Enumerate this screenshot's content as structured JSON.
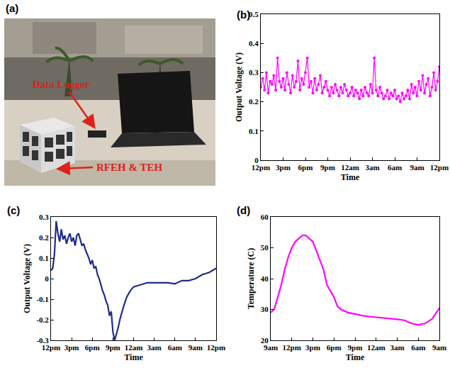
{
  "chart_data": [
    {
      "type": "line",
      "title": "(b)",
      "xlabel": "Time",
      "ylabel": "Output Voltage (V)",
      "color": "#ff00ff",
      "marker": "circle",
      "grid": false,
      "x": [
        0,
        0.25,
        0.5,
        0.75,
        1,
        1.25,
        1.5,
        1.75,
        2,
        2.25,
        2.5,
        2.75,
        3,
        3.25,
        3.5,
        3.75,
        4,
        4.25,
        4.5,
        4.75,
        5,
        5.25,
        5.5,
        5.75,
        6,
        6.25,
        6.5,
        6.75,
        7,
        7.25,
        7.5,
        7.75,
        8,
        8.25,
        8.5,
        8.75,
        9,
        9.25,
        9.5,
        9.75,
        10,
        10.25,
        10.5,
        10.75,
        11,
        11.25,
        11.5,
        11.75,
        12,
        12.25,
        12.5,
        12.75,
        13,
        13.25,
        13.5,
        13.75,
        14,
        14.25,
        14.5,
        14.75,
        15,
        15.25,
        15.5,
        15.75,
        16,
        16.25,
        16.5,
        16.75,
        17,
        17.25,
        17.5,
        17.75,
        18,
        18.25,
        18.5,
        18.75,
        19,
        19.25,
        19.5,
        19.75,
        20,
        20.25,
        20.5,
        20.75,
        21,
        21.25,
        21.5,
        21.75,
        22,
        22.25,
        22.5,
        22.75,
        23,
        23.25,
        23.5,
        23.75,
        24
      ],
      "values": [
        0.25,
        0.28,
        0.24,
        0.3,
        0.23,
        0.27,
        0.26,
        0.29,
        0.24,
        0.35,
        0.27,
        0.25,
        0.28,
        0.24,
        0.3,
        0.26,
        0.23,
        0.29,
        0.25,
        0.27,
        0.34,
        0.24,
        0.28,
        0.26,
        0.3,
        0.35,
        0.25,
        0.27,
        0.23,
        0.28,
        0.24,
        0.26,
        0.29,
        0.23,
        0.25,
        0.27,
        0.24,
        0.22,
        0.25,
        0.23,
        0.26,
        0.24,
        0.22,
        0.25,
        0.23,
        0.26,
        0.24,
        0.22,
        0.23,
        0.25,
        0.22,
        0.24,
        0.23,
        0.21,
        0.24,
        0.22,
        0.25,
        0.23,
        0.22,
        0.26,
        0.23,
        0.35,
        0.24,
        0.22,
        0.25,
        0.23,
        0.21,
        0.22,
        0.24,
        0.21,
        0.23,
        0.22,
        0.24,
        0.21,
        0.22,
        0.2,
        0.23,
        0.21,
        0.22,
        0.24,
        0.21,
        0.26,
        0.23,
        0.25,
        0.22,
        0.27,
        0.24,
        0.29,
        0.23,
        0.26,
        0.28,
        0.22,
        0.25,
        0.3,
        0.24,
        0.27,
        0.32
      ],
      "xlim": [
        0,
        24
      ],
      "xticks": [
        {
          "value": 0,
          "label": "12pm"
        },
        {
          "value": 3,
          "label": "3pm"
        },
        {
          "value": 6,
          "label": "6pm"
        },
        {
          "value": 9,
          "label": "9pm"
        },
        {
          "value": 12,
          "label": "12am"
        },
        {
          "value": 15,
          "label": "3am"
        },
        {
          "value": 18,
          "label": "6am"
        },
        {
          "value": 21,
          "label": "9am"
        },
        {
          "value": 24,
          "label": "12pm"
        }
      ],
      "ylim": [
        0,
        0.5
      ],
      "yticks": [
        0,
        0.1,
        0.2,
        0.3,
        0.4,
        0.5
      ]
    },
    {
      "type": "line",
      "title": "(c)",
      "xlabel": "Time",
      "ylabel": "Output Voltage (V)",
      "color": "#1f2d8a",
      "grid": false,
      "x": [
        0,
        0.25,
        0.5,
        0.75,
        1,
        1.25,
        1.5,
        1.75,
        2,
        2.25,
        2.5,
        2.75,
        3,
        3.25,
        3.5,
        3.75,
        4,
        4.25,
        4.5,
        4.75,
        5,
        5.25,
        5.5,
        5.75,
        6,
        6.25,
        6.5,
        6.75,
        7,
        7.25,
        7.5,
        7.75,
        8,
        8.25,
        8.5,
        8.75,
        9,
        9.25,
        9.5,
        9.75,
        10,
        10.5,
        11,
        11.5,
        12,
        13,
        14,
        15,
        16,
        17,
        18,
        19,
        20,
        21,
        22,
        23,
        24
      ],
      "values": [
        0.04,
        0.05,
        0.12,
        0.28,
        0.22,
        0.18,
        0.24,
        0.19,
        0.21,
        0.17,
        0.2,
        0.22,
        0.18,
        0.2,
        0.16,
        0.21,
        0.22,
        0.19,
        0.16,
        0.17,
        0.14,
        0.12,
        0.1,
        0.07,
        0.09,
        0.05,
        0.06,
        0.02,
        0.0,
        -0.03,
        -0.06,
        -0.08,
        -0.11,
        -0.13,
        -0.18,
        -0.16,
        -0.26,
        -0.3,
        -0.27,
        -0.24,
        -0.2,
        -0.14,
        -0.09,
        -0.06,
        -0.04,
        -0.03,
        -0.02,
        -0.02,
        -0.02,
        -0.02,
        -0.025,
        -0.01,
        -0.01,
        0.0,
        0.02,
        0.03,
        0.05
      ],
      "xlim": [
        0,
        24
      ],
      "xticks": [
        {
          "value": 0,
          "label": "12pm"
        },
        {
          "value": 3,
          "label": "3pm"
        },
        {
          "value": 6,
          "label": "6pm"
        },
        {
          "value": 9,
          "label": "9pm"
        },
        {
          "value": 12,
          "label": "12am"
        },
        {
          "value": 15,
          "label": "3am"
        },
        {
          "value": 18,
          "label": "6am"
        },
        {
          "value": 21,
          "label": "9am"
        },
        {
          "value": 24,
          "label": "12pm"
        }
      ],
      "ylim": [
        -0.3,
        0.3
      ],
      "yticks": [
        -0.3,
        -0.2,
        -0.1,
        0,
        0.1,
        0.2,
        0.3
      ]
    },
    {
      "type": "line",
      "title": "(d)",
      "xlabel": "Time",
      "ylabel": "Temperature (C)",
      "color": "#ff00ff",
      "grid": false,
      "x": [
        0,
        0.5,
        1,
        1.5,
        2,
        2.5,
        3,
        3.5,
        4,
        4.5,
        5,
        5.5,
        6,
        6.5,
        7,
        7.5,
        8,
        8.5,
        9,
        9.5,
        10,
        11,
        12,
        13,
        14,
        15,
        16,
        17,
        18,
        19,
        20,
        21,
        22,
        23,
        24
      ],
      "values": [
        29,
        30,
        34,
        38,
        43,
        47,
        50,
        52,
        53,
        54,
        54,
        53,
        52,
        49,
        46,
        43,
        38,
        36,
        34,
        31,
        30,
        29,
        28.5,
        28,
        27.7,
        27.5,
        27.3,
        27,
        26.8,
        26.5,
        25.5,
        25,
        25.5,
        27,
        30.5
      ],
      "xlim": [
        0,
        24
      ],
      "xticks": [
        {
          "value": 0,
          "label": "9am"
        },
        {
          "value": 3,
          "label": "12pm"
        },
        {
          "value": 6,
          "label": "3pm"
        },
        {
          "value": 9,
          "label": "6pm"
        },
        {
          "value": 12,
          "label": "9pm"
        },
        {
          "value": 15,
          "label": "12am"
        },
        {
          "value": 18,
          "label": "3am"
        },
        {
          "value": 21,
          "label": "6am"
        },
        {
          "value": 24,
          "label": "9am"
        }
      ],
      "ylim": [
        20,
        60
      ],
      "yticks": [
        20,
        30,
        40,
        50,
        60
      ]
    }
  ],
  "photo": {
    "title": "(a)",
    "annotations": [
      "Data Logger",
      "RFEH & TEH"
    ]
  }
}
